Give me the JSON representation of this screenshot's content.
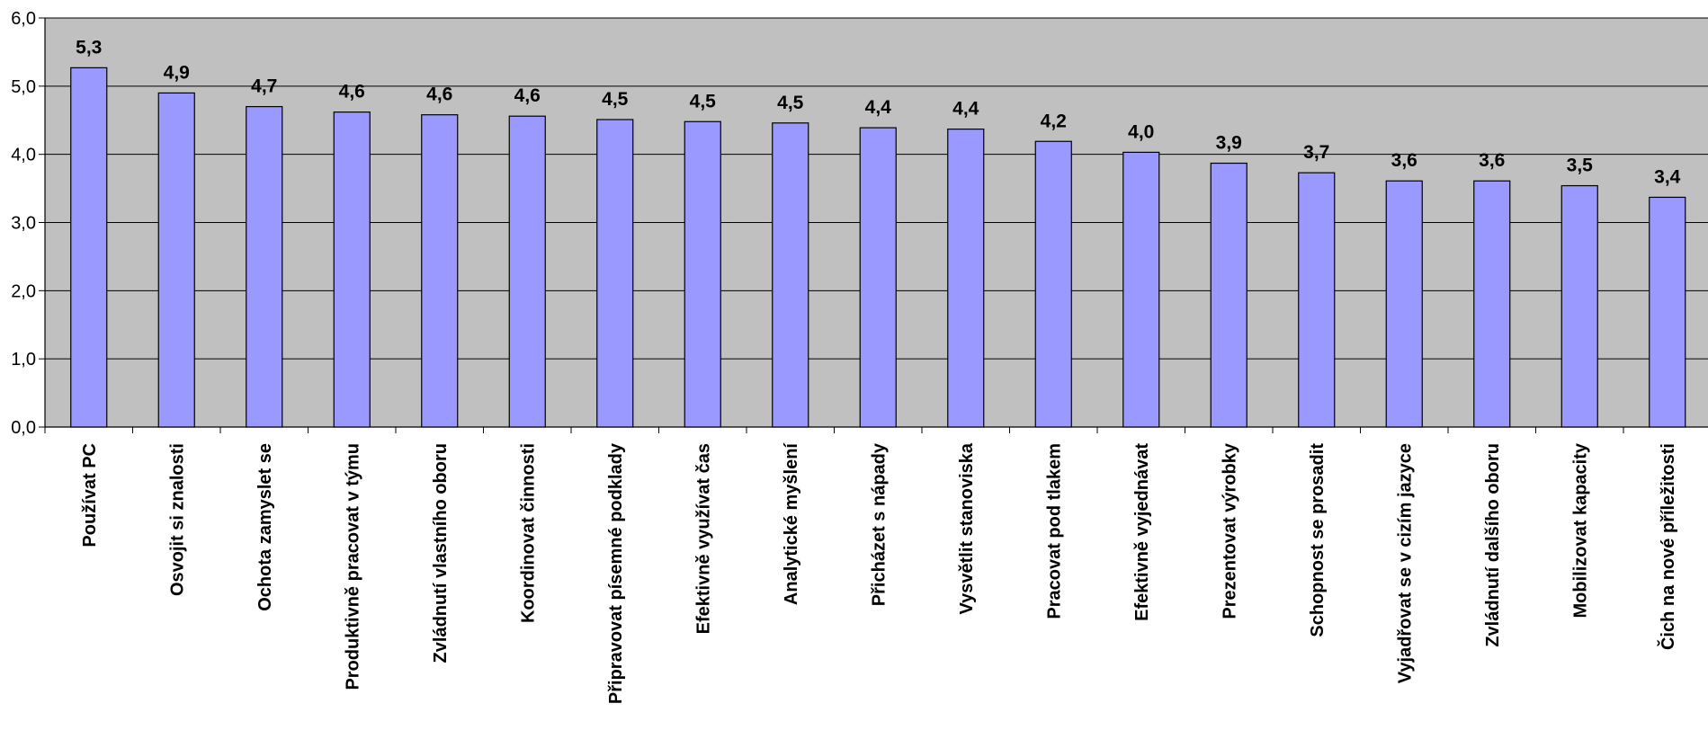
{
  "colors": {
    "plot_background": "#c0c0c0",
    "bar_fill": "#9999ff",
    "bar_stroke": "#000000",
    "grid": "#000000"
  },
  "chart_data": {
    "type": "bar",
    "title": "",
    "xlabel": "",
    "ylabel": "",
    "ylim": [
      0,
      6
    ],
    "yticks": [
      "0,0",
      "1,0",
      "2,0",
      "3,0",
      "4,0",
      "5,0",
      "6,0"
    ],
    "grid": true,
    "legend": "none",
    "categories": [
      "Používat PC",
      "Osvojit si znalosti",
      "Ochota zamyslet se",
      "Produktivně pracovat v týmu",
      "Zvládnutí vlastního oboru",
      "Koordinovat činnosti",
      "Připravovat písemné podklady",
      "Efektivně využívat čas",
      "Analytické myšlení",
      "Přicházet s nápady",
      "Vysvětlit stanoviska",
      "Pracovat pod tlakem",
      "Efektivně vyjednávat",
      "Prezentovat výrobky",
      "Schopnost se prosadit",
      "Vyjadřovat se v cizím jazyce",
      "Zvládnutí dalšího oboru",
      "Mobilizovat kapacity",
      "Čich na nové příležitosti"
    ],
    "values": [
      5.27,
      4.9,
      4.7,
      4.62,
      4.58,
      4.56,
      4.51,
      4.48,
      4.46,
      4.39,
      4.37,
      4.19,
      4.03,
      3.87,
      3.73,
      3.61,
      3.61,
      3.54,
      3.37
    ],
    "data_labels": [
      "5,3",
      "4,9",
      "4,7",
      "4,6",
      "4,6",
      "4,6",
      "4,5",
      "4,5",
      "4,5",
      "4,4",
      "4,4",
      "4,2",
      "4,0",
      "3,9",
      "3,7",
      "3,6",
      "3,6",
      "3,5",
      "3,4"
    ]
  }
}
